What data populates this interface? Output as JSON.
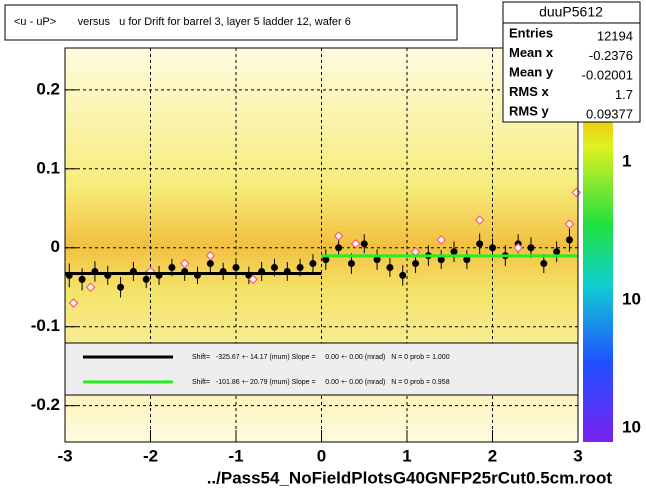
{
  "chart_data": {
    "type": "profile",
    "title": "<u - uP>       versus   u for Drift for barrel 3, layer 5 ladder 12, wafer 6",
    "footer": "../Pass54_NoFieldPlotsG40GNFP25rCut0.5cm.root",
    "xlim": [
      -3,
      3
    ],
    "ylim": [
      -0.246,
      0.253
    ],
    "xticks": [
      -3,
      -2,
      -1,
      0,
      1,
      2,
      3
    ],
    "yticks": [
      -0.2,
      -0.1,
      0,
      0.1,
      0.2
    ],
    "grid": true,
    "colorbar_labels": [
      "1",
      "10",
      "10"
    ],
    "stats": {
      "title": "duuP5612",
      "rows": [
        {
          "label": "Entries",
          "value": 12194
        },
        {
          "label": "Mean x",
          "value": -0.2376
        },
        {
          "label": "Mean y",
          "value": -0.02001
        },
        {
          "label": "RMS x",
          "value": 1.7
        },
        {
          "label": "RMS y",
          "value": 0.09377
        }
      ]
    },
    "series": [
      {
        "name": "profile",
        "color": "#000000",
        "x": [
          -2.95,
          -2.8,
          -2.65,
          -2.5,
          -2.35,
          -2.2,
          -2.05,
          -1.9,
          -1.75,
          -1.6,
          -1.45,
          -1.3,
          -1.15,
          -1.0,
          -0.85,
          -0.7,
          -0.55,
          -0.4,
          -0.25,
          -0.1,
          0.05,
          0.2,
          0.35,
          0.5,
          0.65,
          0.8,
          0.95,
          1.1,
          1.25,
          1.4,
          1.55,
          1.7,
          1.85,
          2.0,
          2.15,
          2.3,
          2.45,
          2.6,
          2.75,
          2.9
        ],
        "values": [
          -0.035,
          -0.04,
          -0.03,
          -0.035,
          -0.05,
          -0.03,
          -0.04,
          -0.035,
          -0.025,
          -0.03,
          -0.035,
          -0.02,
          -0.03,
          -0.025,
          -0.035,
          -0.03,
          -0.025,
          -0.03,
          -0.025,
          -0.02,
          -0.015,
          0.0,
          -0.02,
          0.005,
          -0.015,
          -0.025,
          -0.035,
          -0.02,
          -0.01,
          -0.015,
          -0.005,
          -0.015,
          0.005,
          0.0,
          -0.01,
          0.005,
          0.0,
          -0.02,
          -0.005,
          0.01
        ],
        "errors": [
          0.015,
          0.014,
          0.013,
          0.012,
          0.013,
          0.012,
          0.011,
          0.012,
          0.011,
          0.012,
          0.011,
          0.012,
          0.011,
          0.012,
          0.011,
          0.012,
          0.011,
          0.012,
          0.011,
          0.012,
          0.013,
          0.012,
          0.013,
          0.012,
          0.013,
          0.012,
          0.013,
          0.012,
          0.013,
          0.012,
          0.013,
          0.012,
          0.013,
          0.012,
          0.013,
          0.012,
          0.013,
          0.012,
          0.013,
          0.015
        ]
      },
      {
        "name": "means",
        "color": "#ff5a78",
        "x": [
          -2.9,
          -2.7,
          -2.0,
          -1.6,
          -1.3,
          -0.8,
          0.2,
          0.4,
          1.1,
          1.4,
          1.85,
          2.3,
          2.9,
          2.98
        ],
        "values": [
          -0.07,
          -0.05,
          -0.03,
          -0.02,
          -0.01,
          -0.04,
          0.015,
          0.005,
          -0.005,
          0.01,
          0.035,
          0.0,
          0.03,
          0.07
        ]
      }
    ],
    "fits": [
      {
        "color": "#000000",
        "x": [
          -3,
          0
        ],
        "values": [
          -0.0326,
          -0.0326
        ],
        "text": "Shift=   -325.67 +- 14.17 (mum) Slope =     0.00 +- 0.00 (mrad)   N = 0 prob = 1.000"
      },
      {
        "color": "#22ee22",
        "x": [
          0,
          3
        ],
        "values": [
          -0.0102,
          -0.0102
        ],
        "text": "Shift=   -101.86 +- 20.79 (mum) Slope =     0.00 +- 0.00 (mrad)   N = 0 prob = 0.958"
      }
    ]
  }
}
